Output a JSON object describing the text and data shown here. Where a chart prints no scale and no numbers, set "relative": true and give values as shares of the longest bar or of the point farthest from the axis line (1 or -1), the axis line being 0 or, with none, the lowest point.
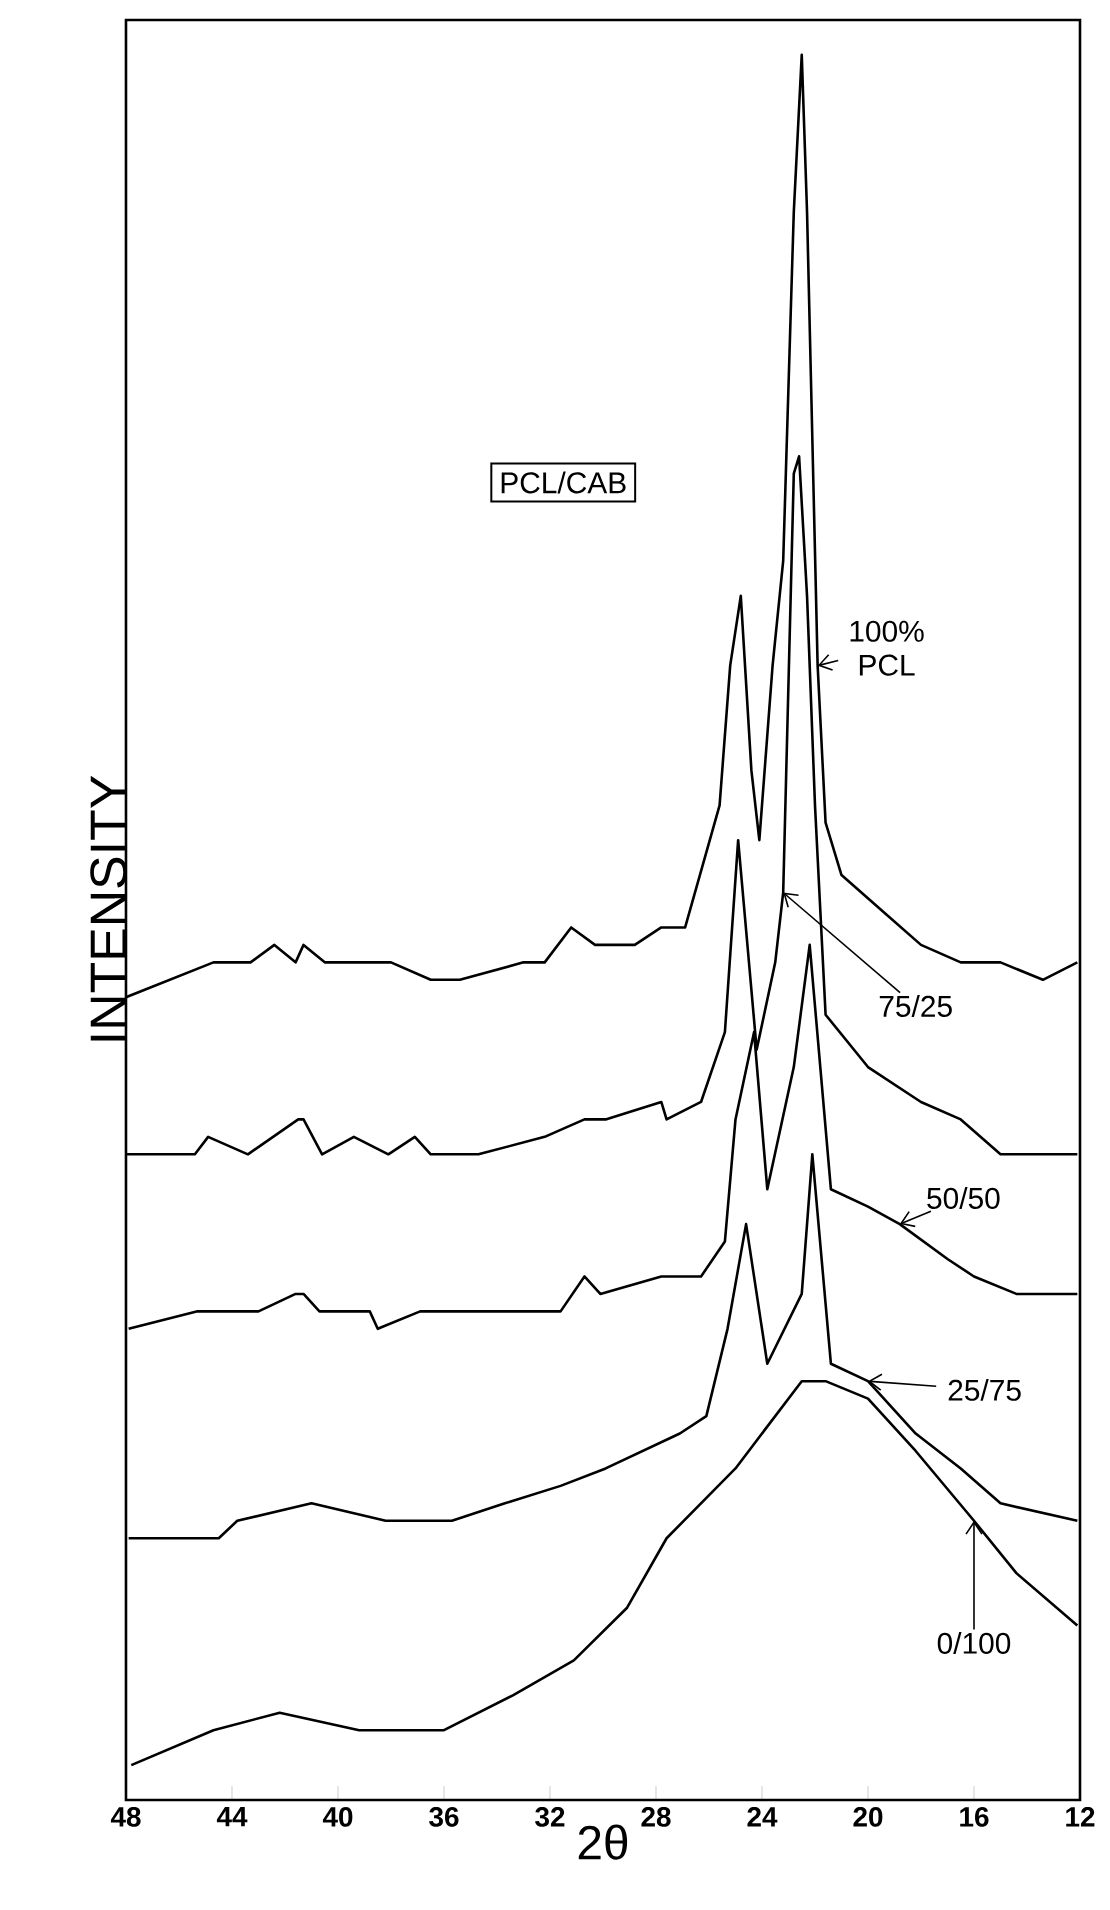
{
  "chart_data": {
    "type": "line",
    "legend_title": "PCL/CAB",
    "xlabel": "2θ",
    "ylabel": "INTENSITY",
    "xlim": [
      48,
      12
    ],
    "xticks": [
      48,
      44,
      40,
      36,
      32,
      28,
      24,
      20,
      16,
      12
    ],
    "relative": true,
    "tick_labels": "x",
    "legend": "right",
    "series": [
      {
        "name": "100% PCL",
        "color": "#000000",
        "x": [
          48,
          44.7,
          43.3,
          42.4,
          41.6,
          41.3,
          40.5,
          40,
          38,
          36.5,
          35.4,
          33,
          32.2,
          31.2,
          30.3,
          28.8,
          27.8,
          26.9,
          25.6,
          25.2,
          24.8,
          24.4,
          24.1,
          23.6,
          23.2,
          22.8,
          22.5,
          22.3,
          21.9,
          21.6,
          21,
          19.5,
          18,
          16.5,
          15,
          13.4,
          12.1
        ],
        "values": [
          0.46,
          0.48,
          0.48,
          0.49,
          0.48,
          0.49,
          0.48,
          0.48,
          0.48,
          0.47,
          0.47,
          0.48,
          0.48,
          0.5,
          0.49,
          0.49,
          0.5,
          0.5,
          0.57,
          0.65,
          0.69,
          0.59,
          0.55,
          0.65,
          0.71,
          0.91,
          1,
          0.91,
          0.65,
          0.56,
          0.53,
          0.51,
          0.49,
          0.48,
          0.48,
          0.47,
          0.48
        ]
      },
      {
        "name": "75/25",
        "color": "#000000",
        "x": [
          48,
          45.8,
          45.4,
          44.9,
          43.4,
          41.5,
          41.3,
          40.6,
          39.4,
          38.1,
          37.1,
          36.5,
          34.7,
          32.2,
          30.7,
          29.9,
          27.8,
          27.6,
          26.3,
          25.4,
          24.9,
          24.2,
          23.5,
          23.2,
          22.8,
          22.6,
          22.3,
          22,
          21.6,
          20,
          18,
          16.5,
          15,
          12.9,
          12.1
        ],
        "values": [
          0.37,
          0.37,
          0.37,
          0.38,
          0.37,
          0.39,
          0.39,
          0.37,
          0.38,
          0.37,
          0.38,
          0.37,
          0.37,
          0.38,
          0.39,
          0.39,
          0.4,
          0.39,
          0.4,
          0.44,
          0.55,
          0.43,
          0.48,
          0.52,
          0.76,
          0.77,
          0.69,
          0.57,
          0.45,
          0.42,
          0.4,
          0.39,
          0.37,
          0.37,
          0.37
        ]
      },
      {
        "name": "50/50",
        "color": "#000000",
        "x": [
          47.9,
          45.3,
          44.5,
          44,
          43,
          41.6,
          41.3,
          40.7,
          38.8,
          38.5,
          36.9,
          34.7,
          31.6,
          30.7,
          30.1,
          27.8,
          26.3,
          25.4,
          25,
          24.3,
          23.8,
          22.8,
          22.2,
          21.4,
          20,
          18.8,
          17,
          16,
          14.4,
          12.1
        ],
        "values": [
          0.27,
          0.28,
          0.28,
          0.28,
          0.28,
          0.29,
          0.29,
          0.28,
          0.28,
          0.27,
          0.28,
          0.28,
          0.28,
          0.3,
          0.29,
          0.3,
          0.3,
          0.32,
          0.39,
          0.44,
          0.35,
          0.42,
          0.49,
          0.35,
          0.34,
          0.33,
          0.31,
          0.3,
          0.29,
          0.29
        ]
      },
      {
        "name": "25/75",
        "color": "#000000",
        "x": [
          47.9,
          46.3,
          44.5,
          43.8,
          41,
          38.2,
          35.7,
          33.7,
          31.6,
          29.9,
          27.1,
          26.1,
          25.3,
          24.6,
          23.8,
          22.5,
          22.1,
          21.4,
          20,
          18.2,
          16.5,
          15,
          12.1
        ],
        "values": [
          0.15,
          0.15,
          0.15,
          0.16,
          0.17,
          0.16,
          0.16,
          0.17,
          0.18,
          0.19,
          0.21,
          0.22,
          0.27,
          0.33,
          0.25,
          0.29,
          0.37,
          0.25,
          0.24,
          0.21,
          0.19,
          0.17,
          0.16
        ]
      },
      {
        "name": "0/100",
        "color": "#000000",
        "x": [
          47.8,
          44.7,
          42.2,
          39.2,
          36,
          33.4,
          31.1,
          29.1,
          27.6,
          25,
          22.5,
          21.6,
          20,
          18.2,
          16,
          14.4,
          12.1
        ],
        "values": [
          0.02,
          0.04,
          0.05,
          0.04,
          0.04,
          0.06,
          0.08,
          0.11,
          0.15,
          0.19,
          0.24,
          0.24,
          0.23,
          0.2,
          0.16,
          0.13,
          0.1
        ]
      }
    ]
  }
}
